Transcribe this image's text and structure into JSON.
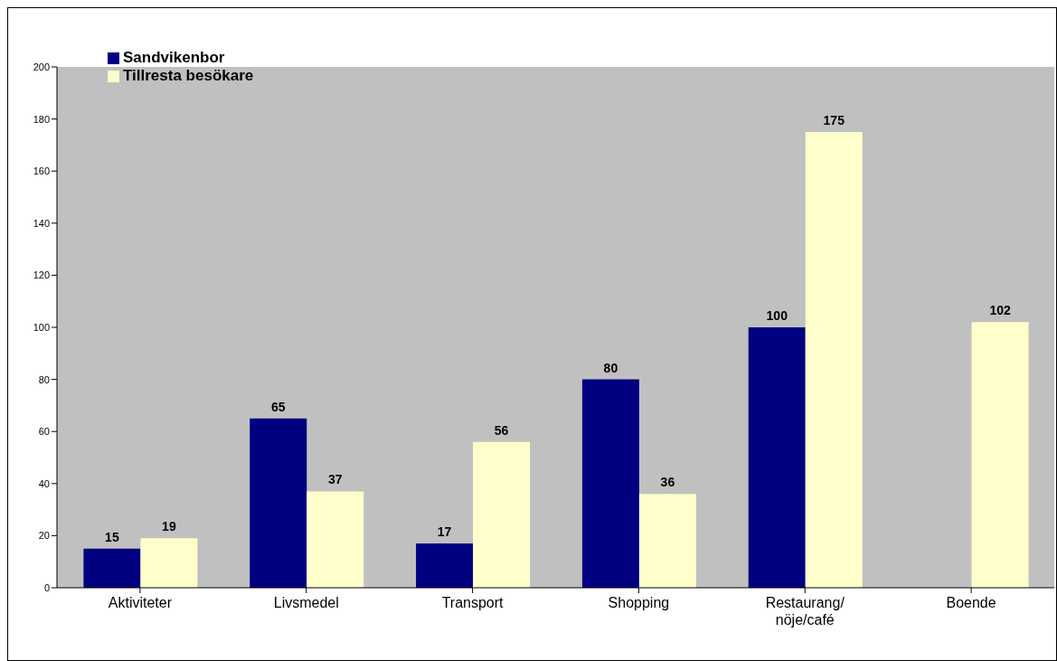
{
  "chart_data": {
    "type": "bar",
    "categories": [
      "Aktiviteter",
      "Livsmedel",
      "Transport",
      "Shopping",
      "Restaurang/nöje/café",
      "Boende"
    ],
    "series": [
      {
        "name": "Sandvikenbor",
        "color": "#000080",
        "values": [
          15,
          65,
          17,
          80,
          100,
          null
        ]
      },
      {
        "name": "Tillresta besökare",
        "color": "#ffffcc",
        "values": [
          19,
          37,
          56,
          36,
          175,
          102
        ]
      }
    ],
    "ylim": [
      0,
      200
    ],
    "yticks": [
      0,
      20,
      40,
      60,
      80,
      100,
      120,
      140,
      160,
      180,
      200
    ],
    "data_labels": true,
    "legend": "top left"
  }
}
